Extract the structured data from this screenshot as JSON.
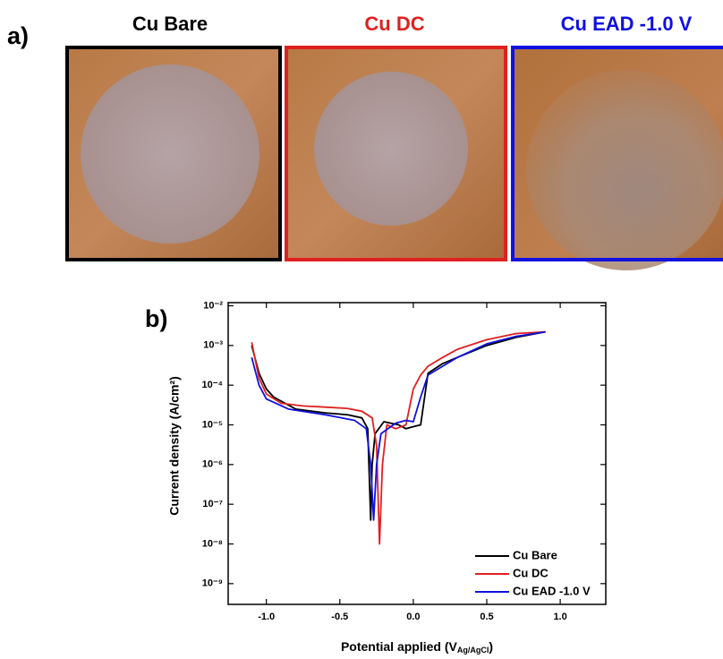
{
  "panel_a": {
    "label": "a)",
    "samples": [
      {
        "name": "Cu Bare",
        "color": "#000000"
      },
      {
        "name": "Cu DC",
        "color": "#e02020"
      },
      {
        "name": "Cu EAD -1.0 V",
        "color": "#1010e0"
      }
    ]
  },
  "chart_data": {
    "type": "line",
    "panel_label": "b)",
    "ylabel": "Current density (A/cm²)",
    "xlabel": {
      "text": "Potential applied (V",
      "subscript": "Ag/AgCl",
      "end": ")"
    },
    "xlim": [
      -1.26,
      1.31
    ],
    "ylim": [
      3e-10,
      0.012
    ],
    "log_y": true,
    "xticks": [
      {
        "value": -1,
        "label": "-1.0"
      },
      {
        "value": -0.5,
        "label": "-0.5"
      },
      {
        "value": 0,
        "label": "0.0"
      },
      {
        "value": 0.5,
        "label": "0.5"
      },
      {
        "value": 1,
        "label": "1.0"
      }
    ],
    "yticks": [
      {
        "value": 1e-09,
        "label": "10⁻⁹"
      },
      {
        "value": 1e-08,
        "label": "10⁻⁸"
      },
      {
        "value": 1e-07,
        "label": "10⁻⁷"
      },
      {
        "value": 1e-06,
        "label": "10⁻⁶"
      },
      {
        "value": 1e-05,
        "label": "10⁻⁵"
      },
      {
        "value": 0.0001,
        "label": "10⁻⁴"
      },
      {
        "value": 0.001,
        "label": "10⁻³"
      },
      {
        "value": 0.01,
        "label": "10⁻²"
      }
    ],
    "legend": "lower right",
    "series": [
      {
        "name": "Cu Bare",
        "color": "#000000",
        "x": [
          -1.1,
          -1.05,
          -1.0,
          -0.95,
          -0.8,
          -0.6,
          -0.45,
          -0.35,
          -0.31,
          -0.29,
          -0.28,
          -0.26,
          -0.2,
          -0.1,
          -0.05,
          0.0,
          0.05,
          0.08,
          0.1,
          0.2,
          0.3,
          0.5,
          0.7,
          0.9
        ],
        "values": [
          0.001,
          0.0002,
          8e-05,
          5e-05,
          2.5e-05,
          2e-05,
          1.8e-05,
          1.5e-05,
          8e-06,
          4e-08,
          1e-06,
          6e-06,
          1.2e-05,
          1e-05,
          8e-06,
          9e-06,
          1e-05,
          6e-05,
          0.0002,
          0.00035,
          0.0005,
          0.001,
          0.0016,
          0.0022
        ]
      },
      {
        "name": "Cu DC",
        "color": "#e02020",
        "x": [
          -1.1,
          -1.05,
          -1.0,
          -0.9,
          -0.75,
          -0.6,
          -0.45,
          -0.35,
          -0.28,
          -0.25,
          -0.23,
          -0.21,
          -0.18,
          -0.12,
          -0.05,
          0.0,
          0.05,
          0.1,
          0.2,
          0.3,
          0.5,
          0.7,
          0.9
        ],
        "values": [
          0.0012,
          0.00015,
          6e-05,
          3.5e-05,
          3e-05,
          2.8e-05,
          2.6e-05,
          2.2e-05,
          1.5e-05,
          3e-06,
          1e-08,
          1e-06,
          1e-05,
          8e-06,
          1e-05,
          8e-05,
          0.00018,
          0.0003,
          0.0005,
          0.0008,
          0.0014,
          0.002,
          0.0022
        ]
      },
      {
        "name": "Cu EAD -1.0 V",
        "color": "#1010e0",
        "x": [
          -1.1,
          -1.05,
          -1.0,
          -0.85,
          -0.6,
          -0.4,
          -0.32,
          -0.29,
          -0.27,
          -0.25,
          -0.22,
          -0.12,
          -0.05,
          0.0,
          0.05,
          0.1,
          0.2,
          0.3,
          0.5,
          0.7,
          0.9
        ],
        "values": [
          0.0005,
          0.0001,
          4.5e-05,
          2.5e-05,
          1.8e-05,
          1.3e-05,
          8e-06,
          1e-06,
          4e-08,
          1e-06,
          6e-06,
          1.1e-05,
          1.3e-05,
          1.2e-05,
          5e-05,
          0.00018,
          0.0003,
          0.0005,
          0.0011,
          0.0017,
          0.0022
        ]
      }
    ]
  }
}
